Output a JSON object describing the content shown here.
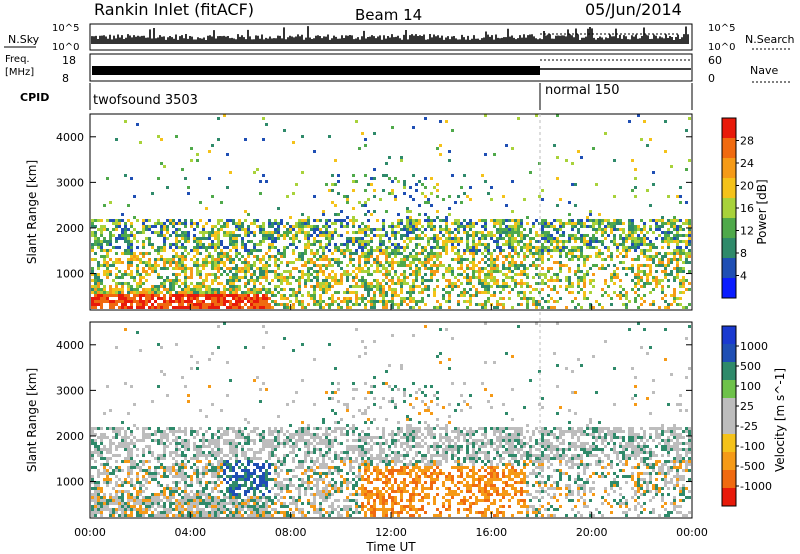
{
  "header": {
    "station": "Rankin Inlet (fitACF)",
    "beam": "Beam 14",
    "date": "05/Jun/2014"
  },
  "top_panels": {
    "nsky_label": "N.Sky",
    "nsky_ticks": [
      "10^5",
      "10^0"
    ],
    "nsearch_label": "N.Search",
    "nsearch_ticks": [
      "10^5",
      "10^0"
    ],
    "freq_label_line1": "Freq.",
    "freq_label_line2": "[MHz]",
    "freq_ticks": [
      "18",
      "8"
    ],
    "nave_label": "Nave",
    "nave_ticks": [
      "60",
      "0"
    ],
    "cpid_label": "CPID",
    "cpid_segments": [
      "twofsound 3503",
      "normal 150"
    ]
  },
  "colors": {
    "power_scale": [
      "#0a1cff",
      "#1f4fb4",
      "#2f8a6a",
      "#4fa94a",
      "#a8d23a",
      "#f4c21a",
      "#f59a17",
      "#f06a10",
      "#e81a0a"
    ],
    "velocity_scale": [
      "#e81a0a",
      "#f06a10",
      "#f59a17",
      "#f4c21a",
      "#bdbdbd",
      "#bdbdbd",
      "#6ec24a",
      "#2f8a6a",
      "#1f4fb4",
      "#1a3ad0"
    ],
    "ground_scatter": "#bdbdbd"
  },
  "chart_data": [
    {
      "type": "heatmap",
      "name": "power",
      "ylabel": "Slant Range [km]",
      "yticks": [
        "1000",
        "2000",
        "3000",
        "4000"
      ],
      "ylim": [
        200,
        4500
      ],
      "xlim": [
        "00:00",
        "24:00"
      ],
      "colorbar_label": "Power [dB]",
      "colorbar_ticks": [
        "28",
        "24",
        "20",
        "16",
        "12",
        "8",
        "4"
      ]
    },
    {
      "type": "heatmap",
      "name": "velocity",
      "ylabel": "Slant Range [km]",
      "yticks": [
        "1000",
        "2000",
        "3000",
        "4000"
      ],
      "ylim": [
        200,
        4500
      ],
      "xlim": [
        "00:00",
        "24:00"
      ],
      "colorbar_label": "Velocity [m s^-1]",
      "colorbar_ticks": [
        "1000",
        "500",
        "100",
        "25",
        "-25",
        "-100",
        "-500",
        "-1000"
      ],
      "xticks": [
        "00:00",
        "04:00",
        "08:00",
        "12:00",
        "16:00",
        "20:00",
        "00:00"
      ],
      "xlabel": "Time UT"
    }
  ]
}
